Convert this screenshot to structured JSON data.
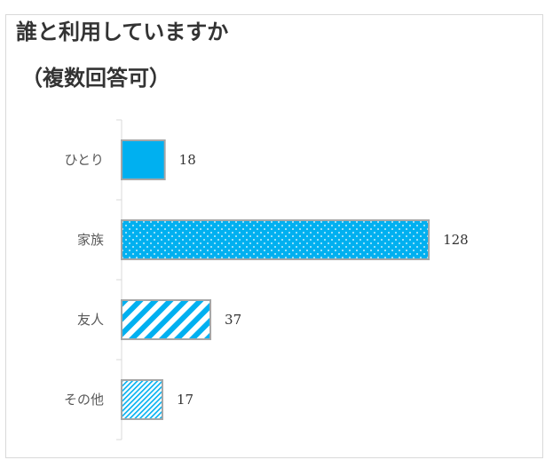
{
  "chart_data": {
    "type": "bar",
    "orientation": "horizontal",
    "title": "誰と利用していますか",
    "subtitle": "（複数回答可）",
    "categories": [
      "ひとり",
      "家族",
      "友人",
      "その他"
    ],
    "values": [
      18,
      128,
      37,
      17
    ],
    "bar_styles": [
      "solid",
      "dotted",
      "wide-diagonal-stripes",
      "fine-diagonal-stripes"
    ],
    "show_data_labels": true,
    "xlim": [
      0,
      135
    ],
    "grid": false,
    "legend": "none",
    "colors": {
      "bar_fill": "#00b0f0",
      "bar_border": "#a6a6a6",
      "axis": "#d9d9d9",
      "text": "#333333"
    }
  }
}
